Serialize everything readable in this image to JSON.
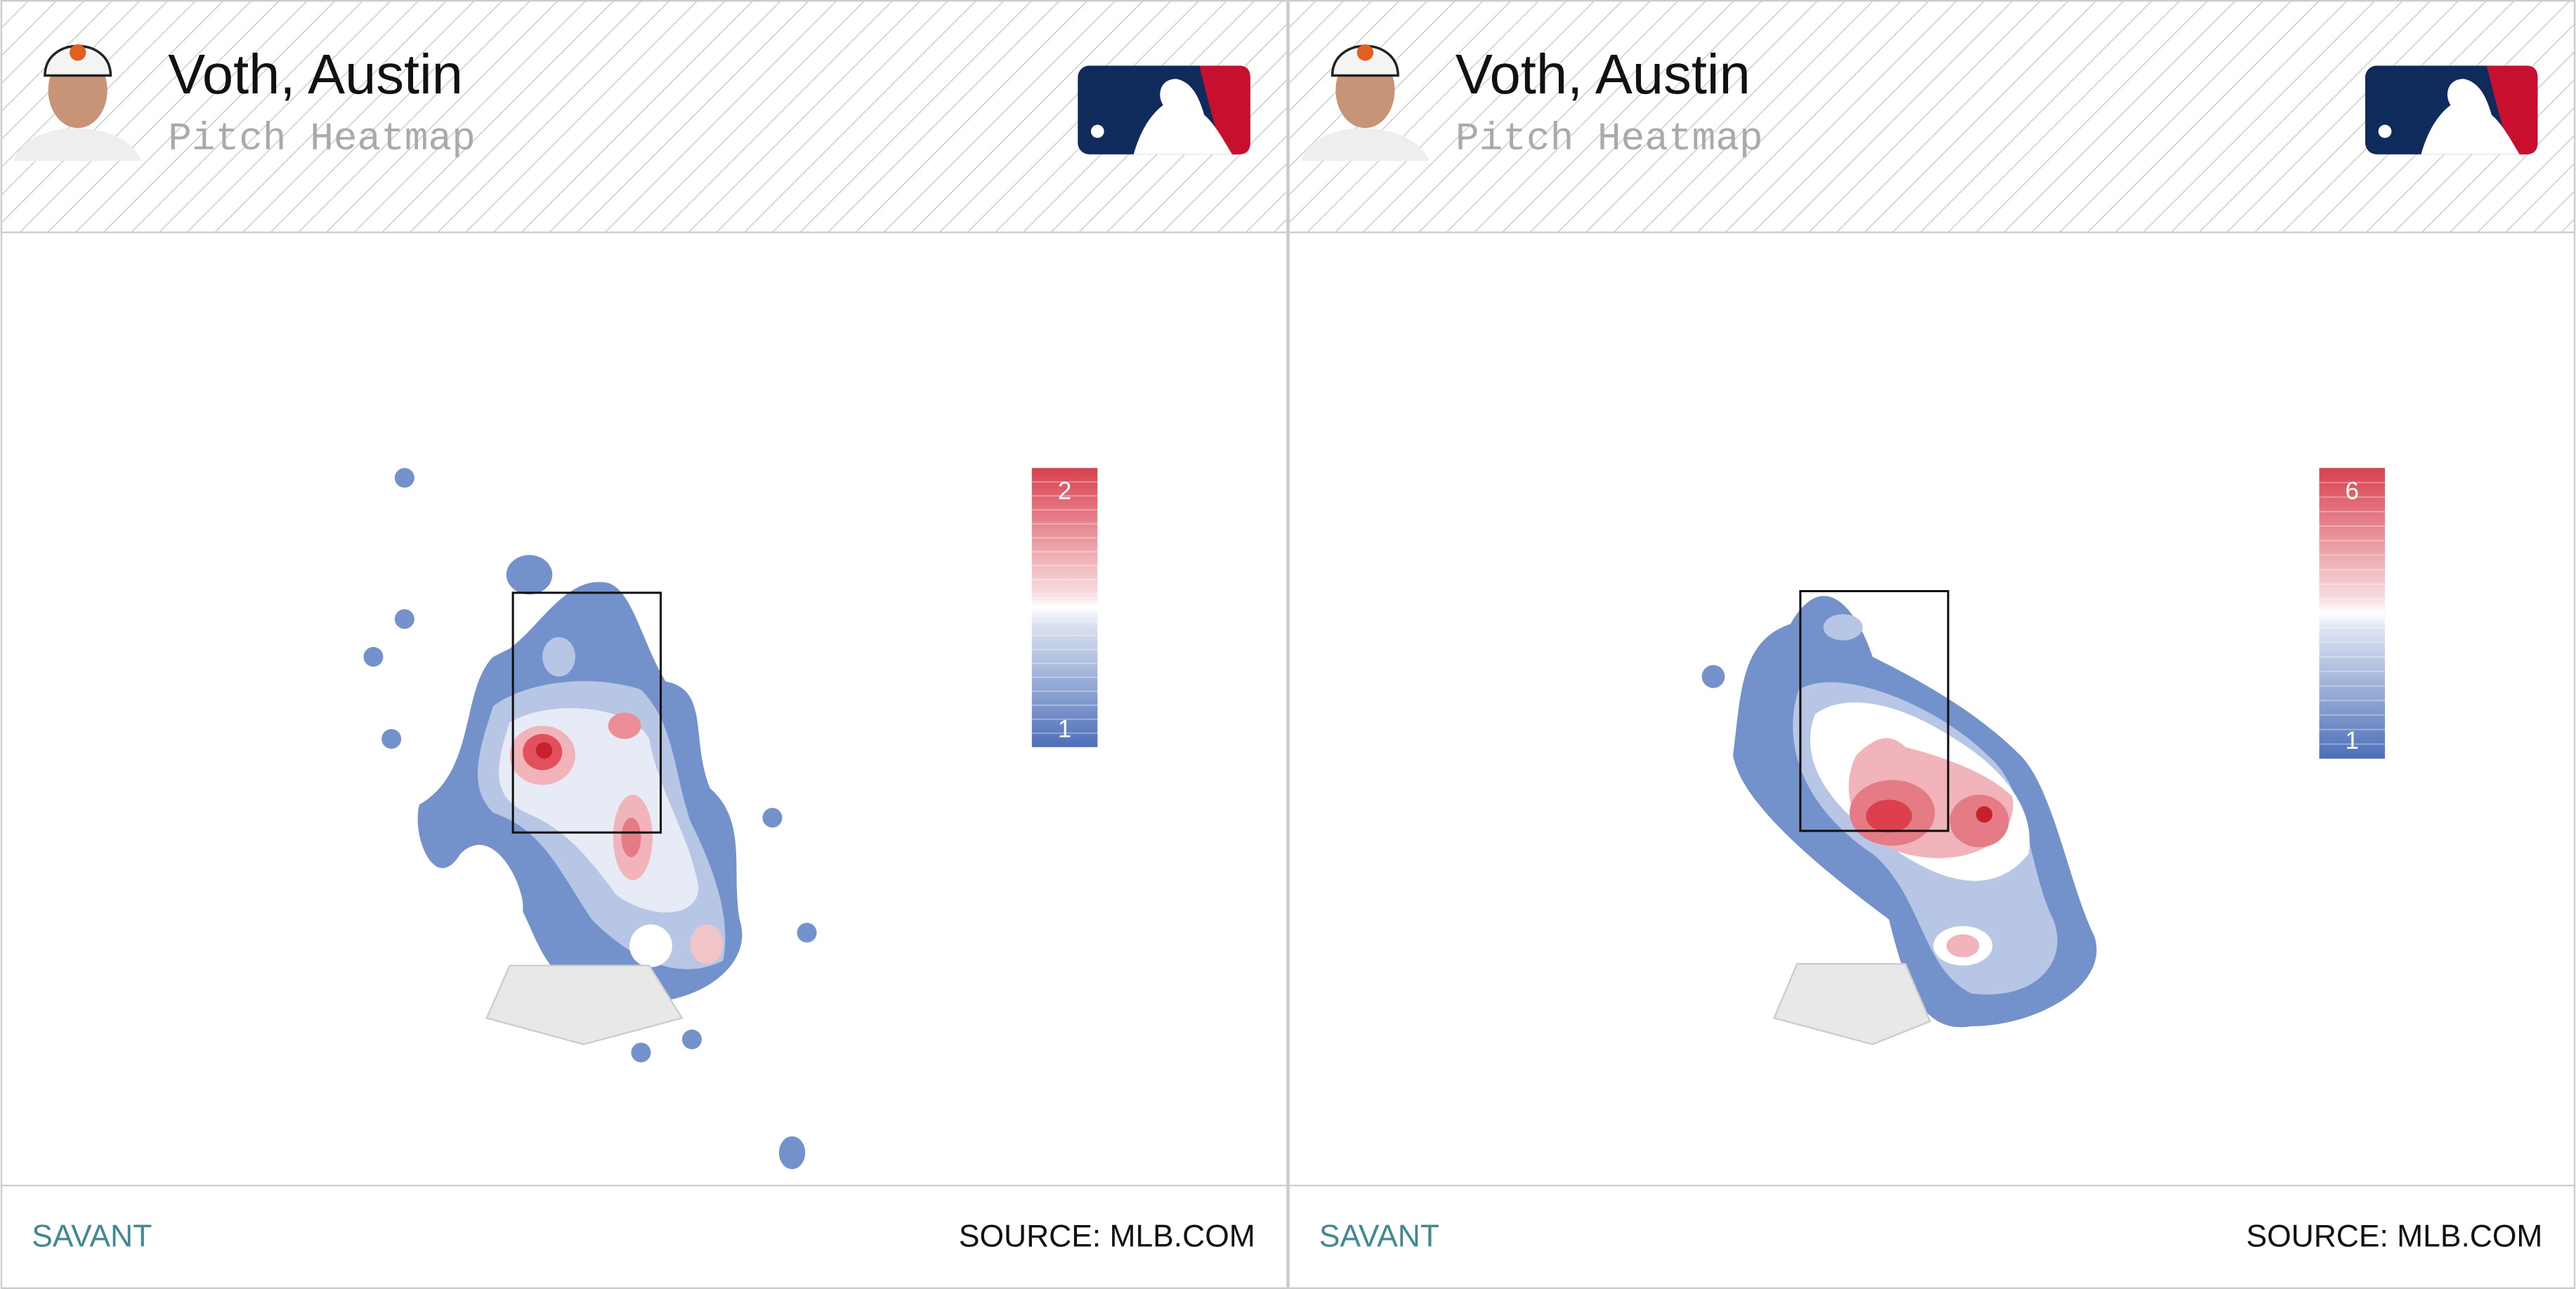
{
  "panels": [
    {
      "player": "Voth, Austin",
      "subtitle": "Pitch Heatmap",
      "legend": {
        "max": 2,
        "min": 1
      },
      "footer_left": "SAVANT",
      "footer_right": "SOURCE: MLB.COM"
    },
    {
      "player": "Voth, Austin",
      "subtitle": "Pitch Heatmap",
      "legend": {
        "max": 6,
        "min": 1
      },
      "footer_left": "SAVANT",
      "footer_right": "SOURCE: MLB.COM"
    }
  ]
}
